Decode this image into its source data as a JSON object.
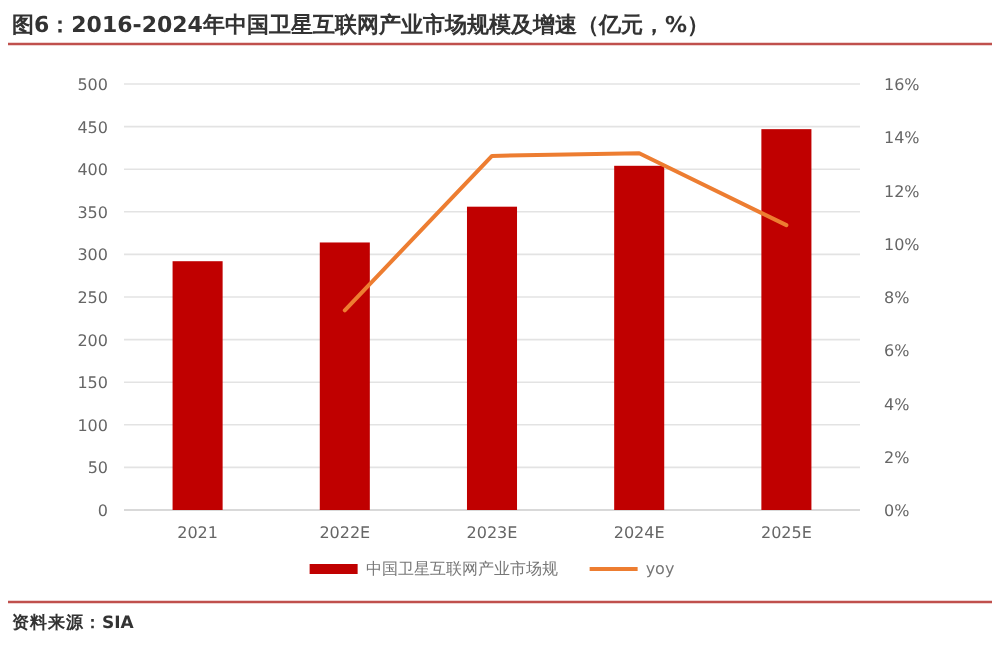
{
  "chart_data": {
    "type": "bar",
    "title": "图6：2016-2024年中国卫星互联网产业市场规模及增速（亿元，%）",
    "categories": [
      "2021",
      "2022E",
      "2023E",
      "2024E",
      "2025E"
    ],
    "series": [
      {
        "name": "中国卫星互联网产业市场规",
        "color": "#c00000",
        "values": [
          292,
          314,
          356,
          404,
          447
        ]
      },
      {
        "name": "yoy",
        "type": "line",
        "axis": "y2",
        "color": "#ed7d31",
        "values": [
          null,
          7.5,
          13.3,
          13.4,
          10.7
        ]
      }
    ],
    "ylim": [
      0,
      500
    ],
    "yticks": [
      0,
      50,
      100,
      150,
      200,
      250,
      300,
      350,
      400,
      450,
      500
    ],
    "y2lim": [
      0,
      16
    ],
    "y2ticks": [
      {
        "value": 0,
        "label": "0%"
      },
      {
        "value": 2,
        "label": "2%"
      },
      {
        "value": 4,
        "label": "4%"
      },
      {
        "value": 6,
        "label": "6%"
      },
      {
        "value": 8,
        "label": "8%"
      },
      {
        "value": 10,
        "label": "10%"
      },
      {
        "value": 12,
        "label": "12%"
      },
      {
        "value": 14,
        "label": "14%"
      },
      {
        "value": 16,
        "label": "16%"
      }
    ],
    "grid": "y",
    "legend": "bottom",
    "annotations": [
      "资料来源：SIA"
    ]
  }
}
